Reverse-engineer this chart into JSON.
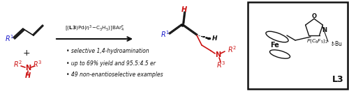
{
  "background": "#ffffff",
  "black": "#111111",
  "blue": "#1a1acc",
  "red": "#cc1111",
  "bullets": [
    "selective 1,4-hydroamination",
    "up to 69% yield and 95.5:4.5 er",
    "49 non-enantioselective examples"
  ],
  "figsize": [
    5.0,
    1.31
  ],
  "dpi": 100
}
